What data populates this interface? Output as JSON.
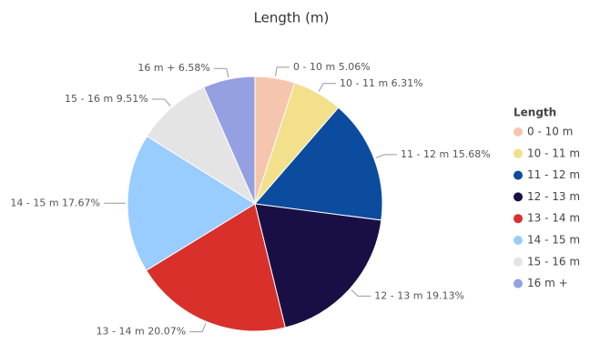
{
  "chart_data": {
    "type": "pie",
    "title": "Length (m)",
    "legend_title": "Length",
    "categories": [
      "0 - 10 m",
      "10 - 11 m",
      "11 - 12 m",
      "12 - 13 m",
      "13 - 14 m",
      "14 - 15 m",
      "15 - 16 m",
      "16 m +"
    ],
    "values": [
      5.06,
      6.31,
      15.68,
      19.13,
      20.07,
      17.67,
      9.51,
      6.58
    ],
    "value_labels": [
      "5.06%",
      "6.31%",
      "15.68%",
      "19.13%",
      "20.07%",
      "17.67%",
      "9.51%",
      "6.58%"
    ],
    "colors": [
      "#f5c6ad",
      "#f2e08a",
      "#0b4c9e",
      "#1a0f45",
      "#d9302b",
      "#99ccff",
      "#e4e4e4",
      "#95a0e2"
    ],
    "legend": "right"
  }
}
